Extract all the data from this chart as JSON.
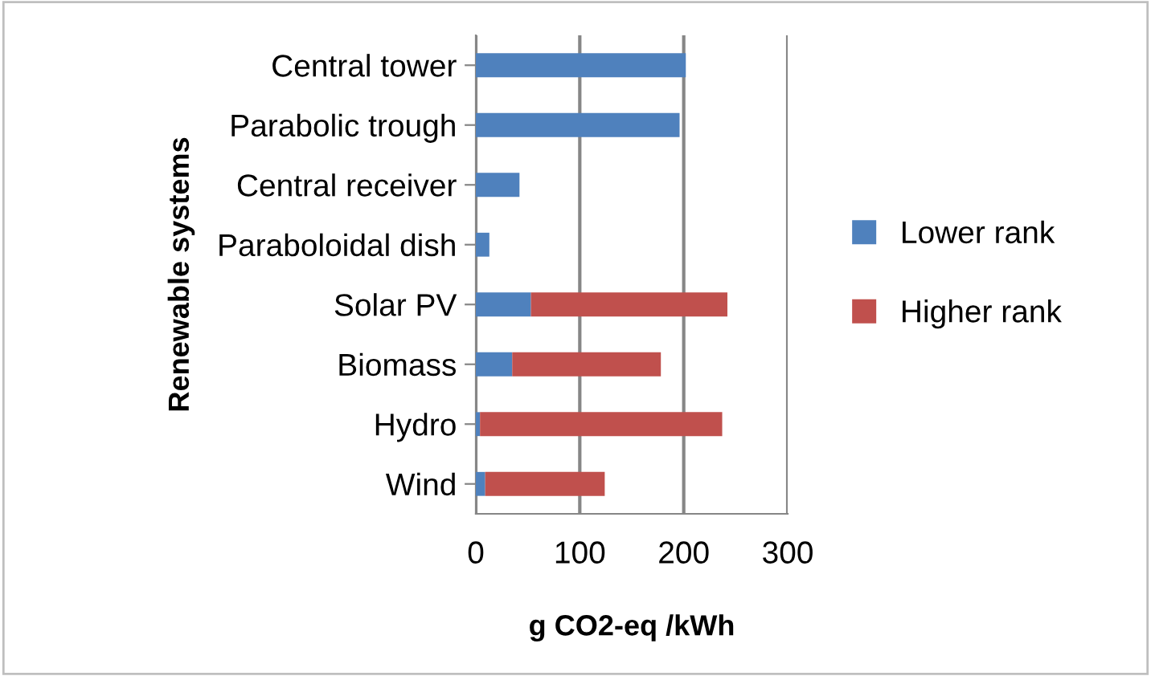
{
  "chart_data": {
    "type": "bar",
    "orientation": "horizontal",
    "stacked": true,
    "categories": [
      "Central tower",
      "Parabolic trough",
      "Central receiver",
      "Paraboloidal dish",
      "Solar PV",
      "Biomass",
      "Hydro",
      "Wind"
    ],
    "series": [
      {
        "name": "Lower rank",
        "color": "#4f81bd",
        "values": [
          202,
          196,
          42,
          13,
          53,
          35,
          4,
          9
        ]
      },
      {
        "name": "Higher rank",
        "color": "#c0504d",
        "values": [
          null,
          null,
          null,
          null,
          189,
          143,
          233,
          115
        ]
      }
    ],
    "xlabel": "g CO2-eq /kWh",
    "ylabel": "Renewable systems",
    "xlim": [
      0,
      300
    ],
    "xticks": [
      0,
      100,
      200,
      300
    ],
    "grid": "x",
    "legend": "right"
  }
}
